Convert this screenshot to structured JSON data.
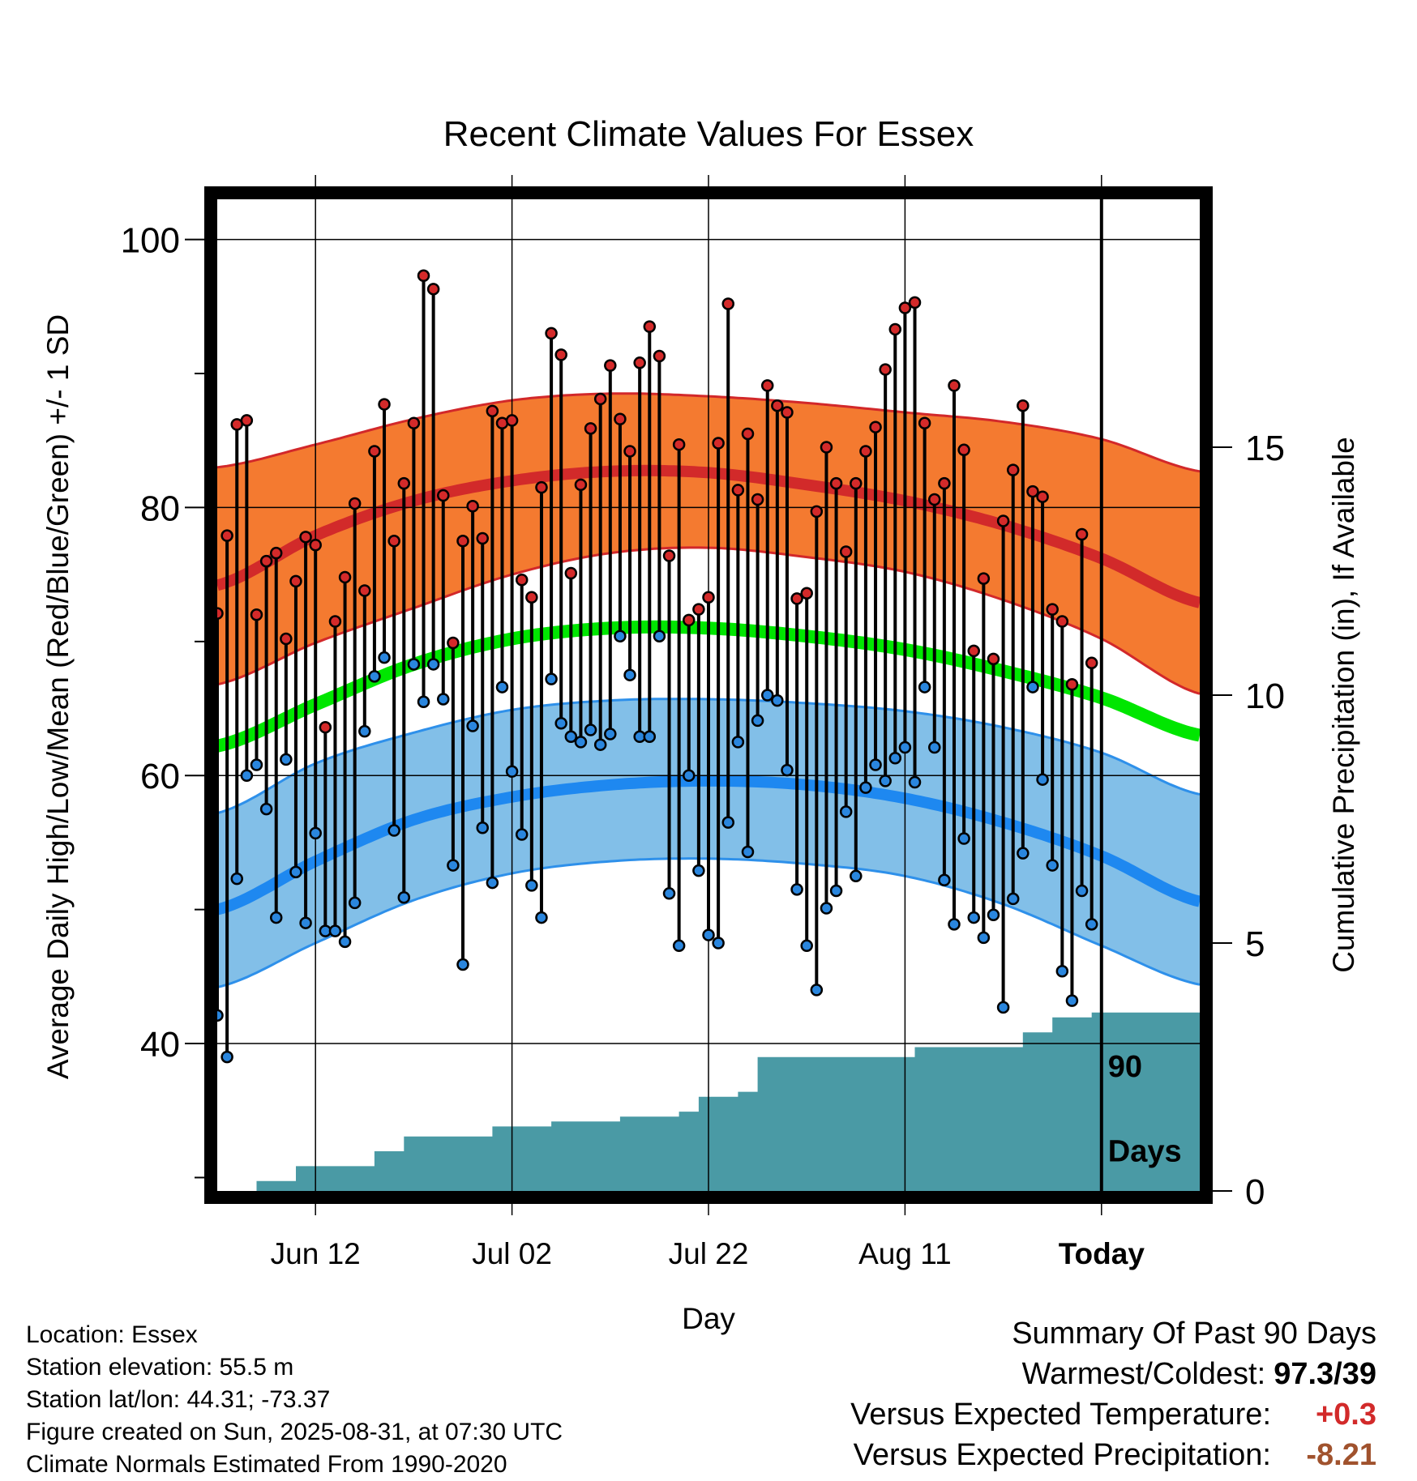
{
  "chart_data": {
    "type": "line",
    "title": "Recent Climate Values For Essex",
    "xlabel": "Day",
    "ylabel": "Average Daily High/Low/Mean (Red/Blue/Green) +/- 1 SD",
    "y2label": "Cumulative Precipitation (in), If Available",
    "ylim": [
      29,
      103
    ],
    "y2lim": [
      0,
      20
    ],
    "yticks": [
      40,
      60,
      80,
      100
    ],
    "y2ticks": [
      0,
      5,
      10,
      15
    ],
    "xtick_labels": [
      "Jun 12",
      "Jul 02",
      "Jul 22",
      "Aug 11",
      "Today"
    ],
    "xtick_days": [
      11,
      31,
      51,
      71,
      91
    ],
    "today_day": 91,
    "days_label": "90 Days",
    "colors": {
      "high_band": "#f47a30",
      "high_band_edge": "#d2282a",
      "high_normal": "#d22a2a",
      "low_band": "#82bfe8",
      "low_band_edge": "#2e90ea",
      "low_normal": "#1e88f0",
      "mean_normal": "#00e600",
      "precip": "#4a9aa5",
      "high_dot": "#d42a2a",
      "low_dot": "#2a86de"
    },
    "normals": {
      "days": [
        1,
        11,
        21,
        31,
        41,
        51,
        61,
        71,
        81,
        91,
        101
      ],
      "high_mean": [
        74.2,
        77.9,
        80.5,
        82.0,
        82.7,
        82.6,
        81.7,
        80.5,
        78.7,
        76.2,
        72.9
      ],
      "high_upper": [
        83.0,
        84.7,
        86.6,
        88.0,
        88.5,
        88.3,
        87.8,
        87.1,
        86.4,
        85.1,
        82.7
      ],
      "high_lower": [
        66.8,
        69.9,
        72.5,
        75.0,
        76.6,
        77.0,
        76.3,
        75.2,
        73.1,
        70.2,
        66.1
      ],
      "mean": [
        62.2,
        65.3,
        68.3,
        70.2,
        71.0,
        71.0,
        70.4,
        69.4,
        67.8,
        65.8,
        63.0
      ],
      "low_mean": [
        50.0,
        53.6,
        56.7,
        58.4,
        59.3,
        59.6,
        59.3,
        58.3,
        56.5,
        54.0,
        50.6
      ],
      "low_upper": [
        57.2,
        60.9,
        63.2,
        64.9,
        65.6,
        65.7,
        65.4,
        64.8,
        63.6,
        61.7,
        58.6
      ],
      "low_lower": [
        44.2,
        47.5,
        50.7,
        52.7,
        53.6,
        53.8,
        53.4,
        52.5,
        50.4,
        47.3,
        44.4
      ]
    },
    "observations": {
      "days": [
        1,
        2,
        3,
        4,
        5,
        6,
        7,
        8,
        9,
        10,
        11,
        12,
        13,
        14,
        15,
        16,
        17,
        18,
        19,
        20,
        21,
        22,
        23,
        24,
        25,
        26,
        27,
        28,
        29,
        30,
        31,
        32,
        33,
        34,
        35,
        36,
        37,
        38,
        39,
        40,
        41,
        42,
        43,
        44,
        45,
        46,
        47,
        48,
        49,
        50,
        51,
        52,
        53,
        54,
        55,
        56,
        57,
        58,
        59,
        60,
        61,
        62,
        63,
        64,
        65,
        66,
        67,
        68,
        69,
        70,
        71,
        72,
        73,
        74,
        75,
        76,
        77,
        78,
        79,
        80,
        81,
        82,
        83,
        84,
        85,
        86,
        87,
        88,
        89,
        90
      ],
      "high": [
        72.1,
        77.9,
        86.2,
        86.5,
        72.0,
        76.0,
        76.6,
        70.2,
        74.5,
        77.8,
        77.2,
        63.6,
        71.5,
        74.8,
        80.3,
        73.8,
        84.2,
        87.7,
        77.5,
        81.8,
        86.3,
        97.3,
        96.3,
        80.9,
        69.9,
        77.5,
        80.1,
        77.7,
        87.2,
        86.3,
        86.5,
        74.6,
        73.3,
        81.5,
        93.0,
        91.4,
        75.1,
        81.7,
        85.9,
        88.1,
        90.6,
        86.6,
        84.2,
        90.8,
        93.5,
        91.3,
        76.4,
        84.7,
        71.6,
        72.4,
        73.3,
        84.8,
        95.2,
        81.3,
        85.5,
        80.6,
        89.1,
        87.6,
        87.1,
        73.2,
        73.6,
        79.7,
        84.5,
        81.8,
        76.7,
        81.8,
        84.2,
        86.0,
        90.3,
        93.3,
        94.9,
        95.3,
        86.3,
        80.6,
        81.8,
        89.1,
        84.3,
        69.3,
        74.7,
        68.7,
        79.0,
        82.8,
        87.6,
        81.2,
        80.8,
        72.4,
        71.5,
        66.8,
        78.0,
        68.4
      ],
      "low": [
        42.1,
        39.0,
        52.3,
        60.0,
        60.8,
        57.5,
        49.4,
        61.2,
        52.8,
        49.0,
        55.7,
        48.4,
        48.4,
        47.6,
        50.5,
        63.3,
        67.4,
        68.8,
        55.9,
        50.9,
        68.3,
        65.5,
        68.3,
        65.7,
        53.3,
        45.9,
        63.7,
        56.1,
        52.0,
        66.6,
        60.3,
        55.6,
        51.8,
        49.4,
        67.2,
        63.9,
        62.9,
        62.5,
        63.4,
        62.3,
        63.1,
        70.4,
        67.5,
        62.9,
        62.9,
        70.4,
        51.2,
        47.3,
        60.0,
        52.9,
        48.1,
        47.5,
        56.5,
        62.5,
        54.3,
        64.1,
        66.0,
        65.6,
        60.4,
        51.5,
        47.3,
        44.0,
        50.1,
        51.4,
        57.3,
        52.5,
        59.1,
        60.8,
        59.6,
        61.3,
        62.1,
        59.5,
        66.6,
        62.1,
        52.2,
        48.9,
        55.3,
        49.4,
        47.9,
        49.6,
        42.7,
        50.8,
        54.2,
        66.6,
        59.7,
        53.3,
        45.4,
        43.2,
        51.4,
        48.9
      ]
    },
    "precip_steps": [
      [
        1,
        0.0
      ],
      [
        5,
        0.2
      ],
      [
        9,
        0.5
      ],
      [
        17,
        0.8
      ],
      [
        20,
        1.1
      ],
      [
        29,
        1.3
      ],
      [
        35,
        1.4
      ],
      [
        42,
        1.5
      ],
      [
        48,
        1.6
      ],
      [
        50,
        1.9
      ],
      [
        54,
        2.0
      ],
      [
        56,
        2.7
      ],
      [
        72,
        2.9
      ],
      [
        83,
        3.2
      ],
      [
        86,
        3.5
      ],
      [
        90,
        3.6
      ],
      [
        101,
        3.6
      ]
    ]
  },
  "footer": {
    "location": "Location: Essex",
    "elevation": "Station elevation: 55.5 m",
    "latlon": "Station lat/lon: 44.31; -73.37",
    "created": "Figure created on Sun, 2025-08-31, at 07:30 UTC",
    "normals_note": "Climate Normals Estimated From 1990-2020"
  },
  "summary": {
    "title": "Summary Of Past 90 Days",
    "warm_label": "Warmest/Coldest:",
    "warm_value": "97.3",
    "slash": "/",
    "cold_value": "39",
    "temp_label": "Versus Expected Temperature:",
    "temp_value": "+0.3",
    "temp_color": "#d22a2a",
    "precip_label": "Versus Expected Precipitation:",
    "precip_value": "-8.21",
    "precip_color": "#a0522d"
  }
}
